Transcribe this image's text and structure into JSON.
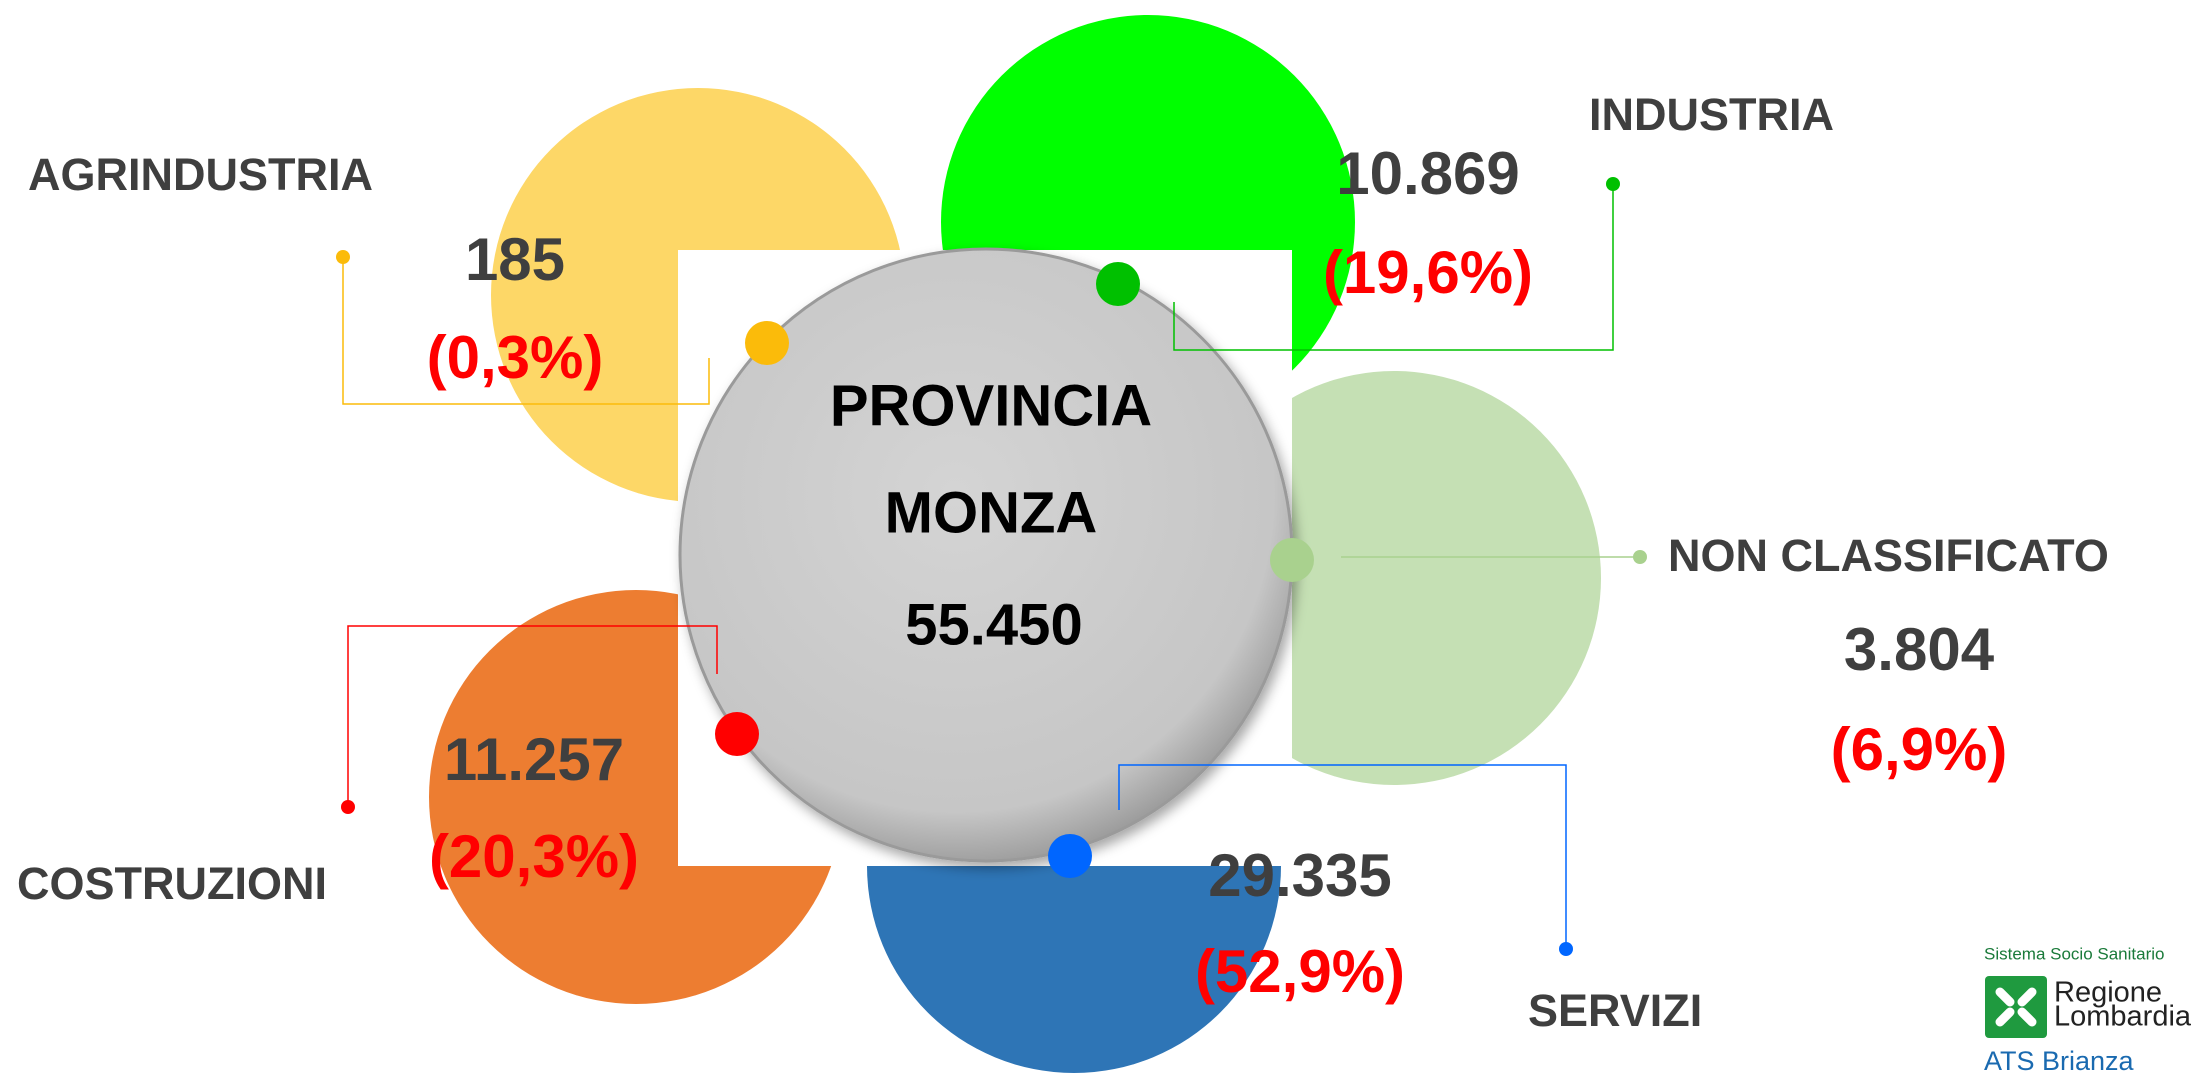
{
  "center": {
    "lines": [
      "PROVINCIA",
      "MONZA"
    ],
    "total": "55.450"
  },
  "sectors": [
    {
      "name": "AGRINDUSTRIA",
      "count": "185",
      "share": "(0,3%)",
      "color": "#fdd767",
      "dot": "#fbbb0a"
    },
    {
      "name": "INDUSTRIA",
      "count": "10.869",
      "share": "(19,6%)",
      "color": "#00ff00",
      "dot": "#00c000"
    },
    {
      "name": "NON CLASSIFICATO",
      "count": "3.804",
      "share": "(6,9%)",
      "color": "#c5e0b4",
      "dot": "#a9d18e"
    },
    {
      "name": "SERVIZI",
      "count": "29.335",
      "share": "(52,9%)",
      "color": "#2e75b6",
      "dot": "#0066ff"
    },
    {
      "name": "COSTRUZIONI",
      "count": "11.257",
      "share": "(20,3%)",
      "color": "#ed7d31",
      "dot": "#ff0000"
    }
  ],
  "logo": {
    "system": "Sistema Socio Sanitario",
    "region": [
      "Regione",
      "Lombardia"
    ],
    "agency": "ATS Brianza"
  }
}
